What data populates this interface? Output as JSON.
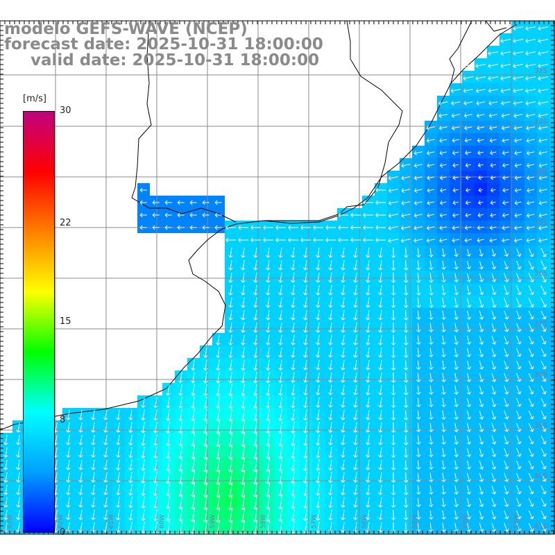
{
  "header": {
    "model": "modelo GEFS-WAVE (NCEP)",
    "forecast": "forecast date: 2025-10-31 18:00:00",
    "valid": "valid date: 2025-10-31 18:00:00"
  },
  "colorbar": {
    "unit": "[m/s]",
    "min": 0,
    "max": 30,
    "ticks": [
      {
        "value": 30,
        "label": "30"
      },
      {
        "value": 22,
        "label": "22"
      },
      {
        "value": 15,
        "label": "15"
      },
      {
        "value": 8,
        "label": "8"
      },
      {
        "value": 0,
        "label": "0"
      }
    ],
    "colors": [
      "#0000ff",
      "#00a0ff",
      "#00ffff",
      "#00ff00",
      "#ffff00",
      "#ff8000",
      "#ff0000",
      "#c00080"
    ]
  },
  "lat_labels": [
    {
      "label": "32S",
      "lat": -32
    },
    {
      "label": "33S",
      "lat": -33
    },
    {
      "label": "34S",
      "lat": -34
    },
    {
      "label": "35S",
      "lat": -35
    },
    {
      "label": "36S",
      "lat": -36
    },
    {
      "label": "37S",
      "lat": -37
    },
    {
      "label": "38S",
      "lat": -38
    },
    {
      "label": "39S",
      "lat": -39
    },
    {
      "label": "40S",
      "lat": -40
    },
    {
      "label": "41S",
      "lat": -41
    },
    {
      "label": "42S",
      "lat": -42
    }
  ],
  "lon_labels": [
    "63W",
    "62W",
    "61W",
    "60W",
    "59W",
    "58W",
    "57W",
    "56W",
    "55W",
    "54W",
    "53W"
  ],
  "colors": {
    "title": "#8a8a8a",
    "grid": "#888888",
    "coast": "#000000",
    "arrows": "#ffffff"
  }
}
